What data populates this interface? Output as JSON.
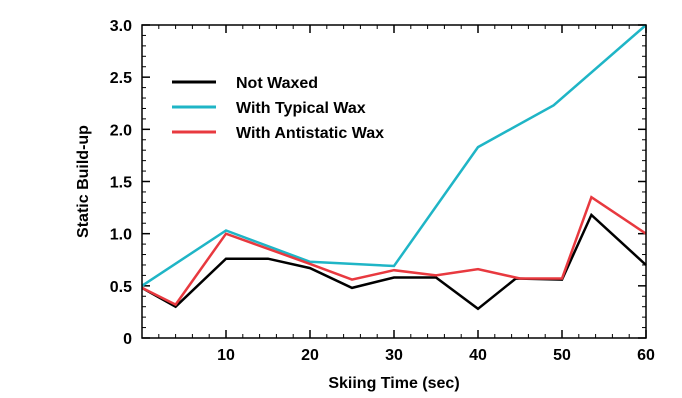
{
  "chart_data": {
    "type": "line",
    "title": "",
    "xlabel": "Skiing Time (sec)",
    "ylabel": "Static Build-up",
    "xlim": [
      0,
      60
    ],
    "ylim": [
      0,
      3.0
    ],
    "xticks": [
      10,
      20,
      30,
      40,
      50,
      60
    ],
    "xtick_labels": [
      "10",
      "20",
      "30",
      "40",
      "50",
      "60"
    ],
    "yticks": [
      0,
      0.5,
      1.0,
      1.5,
      2.0,
      2.5,
      3.0
    ],
    "ytick_labels": [
      "0",
      "0.5",
      "1.0",
      "1.5",
      "2.0",
      "2.5",
      "3.0"
    ],
    "grid": false,
    "legend_position": "top-left",
    "series": [
      {
        "name": "Not Waxed",
        "color": "#000000",
        "x": [
          0,
          4,
          10,
          15,
          20,
          25,
          30,
          35,
          40,
          44.5,
          50,
          53.5,
          60
        ],
        "y": [
          0.48,
          0.3,
          0.76,
          0.76,
          0.67,
          0.48,
          0.58,
          0.58,
          0.28,
          0.57,
          0.56,
          1.18,
          0.7
        ]
      },
      {
        "name": "With Typical Wax",
        "color": "#1fb5c6",
        "x": [
          0,
          10,
          20,
          30,
          40,
          49,
          60
        ],
        "y": [
          0.5,
          1.03,
          0.73,
          0.69,
          1.83,
          2.23,
          3.0
        ]
      },
      {
        "name": "With Antistatic Wax",
        "color": "#e8393f",
        "x": [
          0,
          4,
          10,
          20,
          25,
          30,
          35,
          40,
          45,
          50,
          53.5,
          60
        ],
        "y": [
          0.48,
          0.32,
          1.0,
          0.71,
          0.56,
          0.65,
          0.6,
          0.66,
          0.57,
          0.57,
          1.35,
          1.0
        ]
      }
    ]
  }
}
